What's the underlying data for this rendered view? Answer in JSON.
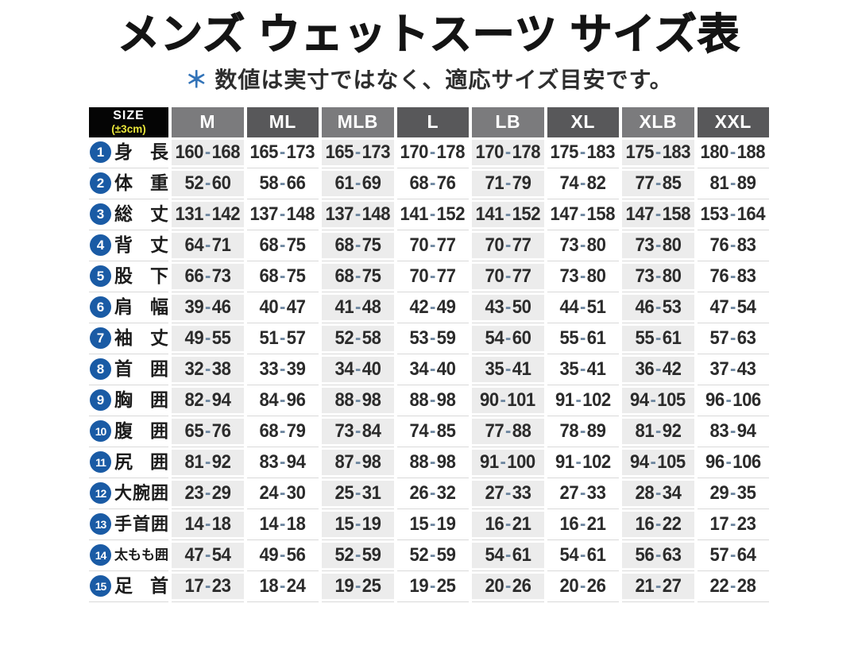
{
  "page": {
    "title": "メンズ ウェットスーツ サイズ表",
    "note_mark": "＊",
    "note": "数値は実寸ではなく、適応サイズ目安です。"
  },
  "table": {
    "corner": {
      "line1": "SIZE",
      "line2": "(±3cm)"
    },
    "columns": [
      "M",
      "ML",
      "MLB",
      "L",
      "LB",
      "XL",
      "XLB",
      "XXL"
    ],
    "rows": [
      {
        "num": "1",
        "label": "身長",
        "values": [
          "160-168",
          "165-173",
          "165-173",
          "170-178",
          "170-178",
          "175-183",
          "175-183",
          "180-188"
        ]
      },
      {
        "num": "2",
        "label": "体重",
        "values": [
          "52-60",
          "58-66",
          "61-69",
          "68-76",
          "71-79",
          "74-82",
          "77-85",
          "81-89"
        ]
      },
      {
        "num": "3",
        "label": "総丈",
        "values": [
          "131-142",
          "137-148",
          "137-148",
          "141-152",
          "141-152",
          "147-158",
          "147-158",
          "153-164"
        ]
      },
      {
        "num": "4",
        "label": "背丈",
        "values": [
          "64-71",
          "68-75",
          "68-75",
          "70-77",
          "70-77",
          "73-80",
          "73-80",
          "76-83"
        ]
      },
      {
        "num": "5",
        "label": "股下",
        "values": [
          "66-73",
          "68-75",
          "68-75",
          "70-77",
          "70-77",
          "73-80",
          "73-80",
          "76-83"
        ]
      },
      {
        "num": "6",
        "label": "肩幅",
        "values": [
          "39-46",
          "40-47",
          "41-48",
          "42-49",
          "43-50",
          "44-51",
          "46-53",
          "47-54"
        ]
      },
      {
        "num": "7",
        "label": "袖丈",
        "values": [
          "49-55",
          "51-57",
          "52-58",
          "53-59",
          "54-60",
          "55-61",
          "55-61",
          "57-63"
        ]
      },
      {
        "num": "8",
        "label": "首囲",
        "values": [
          "32-38",
          "33-39",
          "34-40",
          "34-40",
          "35-41",
          "35-41",
          "36-42",
          "37-43"
        ]
      },
      {
        "num": "9",
        "label": "胸囲",
        "values": [
          "82-94",
          "84-96",
          "88-98",
          "88-98",
          "90-101",
          "91-102",
          "94-105",
          "96-106"
        ]
      },
      {
        "num": "10",
        "label": "腹囲",
        "values": [
          "65-76",
          "68-79",
          "73-84",
          "74-85",
          "77-88",
          "78-89",
          "81-92",
          "83-94"
        ]
      },
      {
        "num": "11",
        "label": "尻囲",
        "values": [
          "81-92",
          "83-94",
          "87-98",
          "88-98",
          "91-100",
          "91-102",
          "94-105",
          "96-106"
        ]
      },
      {
        "num": "12",
        "label": "大腕囲",
        "values": [
          "23-29",
          "24-30",
          "25-31",
          "26-32",
          "27-33",
          "27-33",
          "28-34",
          "29-35"
        ]
      },
      {
        "num": "13",
        "label": "手首囲",
        "values": [
          "14-18",
          "14-18",
          "15-19",
          "15-19",
          "16-21",
          "16-21",
          "16-22",
          "17-23"
        ]
      },
      {
        "num": "14",
        "label": "太もも囲",
        "values": [
          "47-54",
          "49-56",
          "52-59",
          "52-59",
          "54-61",
          "54-61",
          "56-63",
          "57-64"
        ]
      },
      {
        "num": "15",
        "label": "足首",
        "values": [
          "17-23",
          "18-24",
          "19-25",
          "19-25",
          "20-26",
          "20-26",
          "21-27",
          "22-28"
        ]
      }
    ]
  },
  "colors": {
    "accent_blue": "#1a5ba5",
    "note_blue": "#3273b8",
    "header_light": "#7b7b7d",
    "header_dark": "#58585a",
    "stripe": "#ececec",
    "corner_bg": "#050505",
    "corner_yellow": "#e9e63a",
    "dash": "#6e87a0"
  }
}
